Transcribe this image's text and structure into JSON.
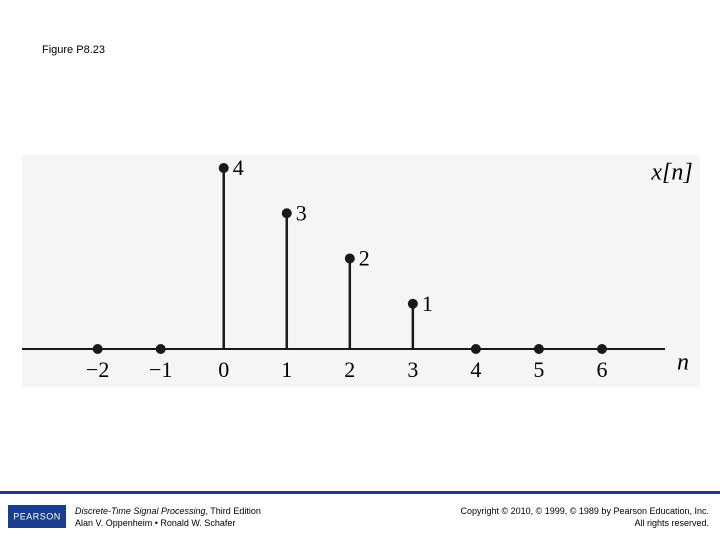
{
  "slide_title": "Figure P8.23",
  "chart_data": {
    "type": "stem",
    "x": [
      -2,
      -1,
      0,
      1,
      2,
      3,
      4,
      5,
      6
    ],
    "values": [
      0,
      0,
      4,
      3,
      2,
      1,
      0,
      0,
      0
    ],
    "xlim": [
      -3.2,
      7
    ],
    "ylim": [
      0,
      4
    ],
    "xticks": [
      {
        "value": -2,
        "label": "−2"
      },
      {
        "value": -1,
        "label": "−1"
      },
      0,
      1,
      2,
      3,
      4,
      5,
      6
    ],
    "x_label": "n",
    "y_label": "x[n]",
    "color": "#1a1a1a"
  },
  "footer": {
    "logo": "PEARSON",
    "book_title": "Discrete-Time Signal Processing",
    "edition": ", Third Edition",
    "authors": "Alan V. Oppenheim • Ronald W. Schafer",
    "copyright": "Copyright © 2010, © 1999, © 1989 by Pearson Education, Inc.",
    "rights": "All rights reserved."
  }
}
